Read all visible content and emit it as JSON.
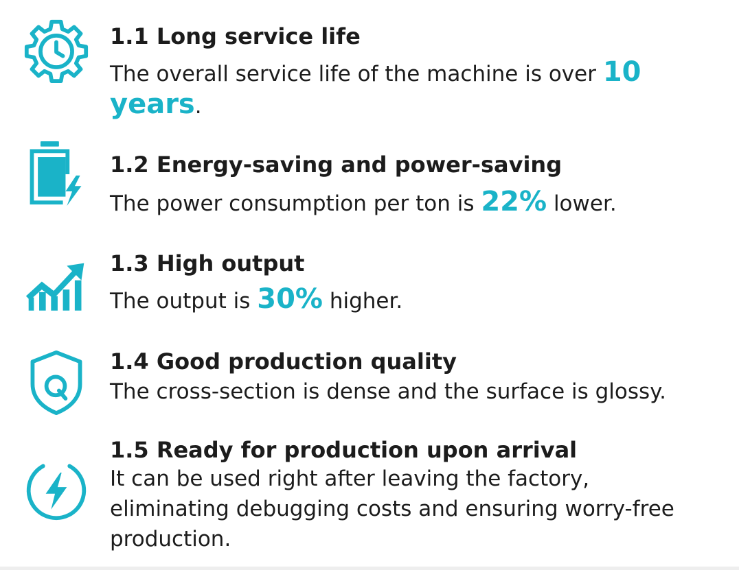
{
  "features": [
    {
      "title": "1.1 Long service life",
      "desc_before": "The overall service life of the machine is over ",
      "highlight": "10 years",
      "desc_after": ".",
      "icon": "gear-clock-icon"
    },
    {
      "title": "1.2 Energy-saving and power-saving",
      "desc_before": "The power consumption per ton is ",
      "highlight": "22%",
      "desc_after": " lower.",
      "icon": "battery-charging-icon"
    },
    {
      "title": "1.3 High output",
      "desc_before": "The output is ",
      "highlight": "30%",
      "desc_after": " higher.",
      "icon": "growth-chart-icon"
    },
    {
      "title": "1.4 Good production quality",
      "desc": "The cross-section is dense and the surface is glossy.",
      "icon": "quality-shield-icon"
    },
    {
      "title": "1.5 Ready for production upon arrival",
      "desc": "It can be used right after leaving the factory, eliminating debugging costs and ensuring worry-free production.",
      "icon": "lightning-circle-icon"
    }
  ],
  "colors": {
    "accent": "#1ab3c8",
    "text": "#1c1c1c"
  }
}
